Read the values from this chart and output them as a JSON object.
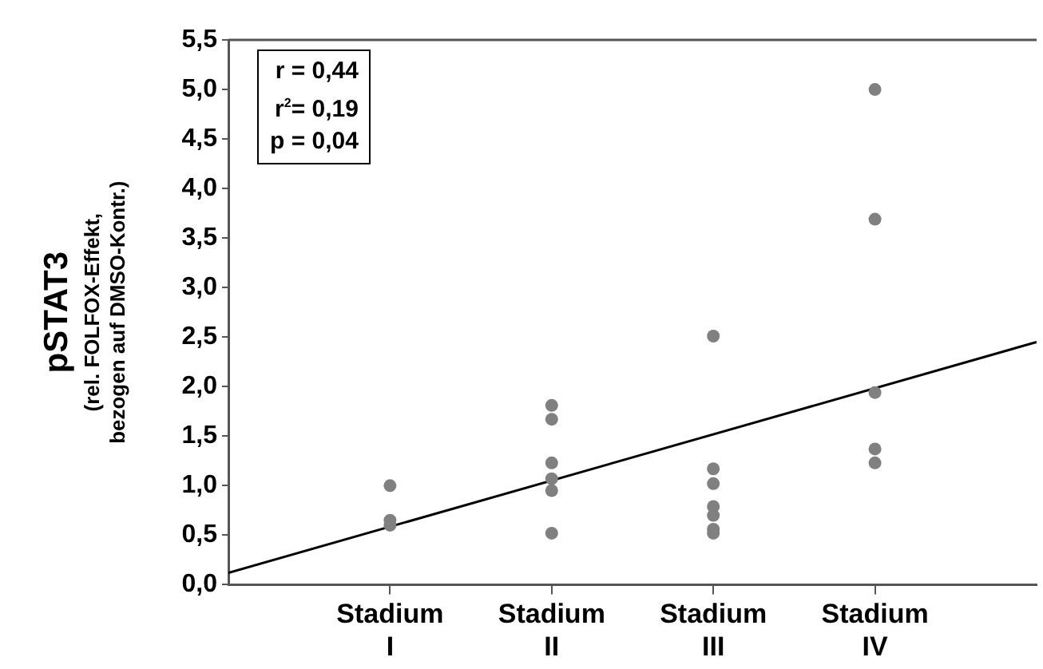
{
  "chart_data": {
    "type": "scatter",
    "ylabel": "pSTAT3\n(rel. FOLFOX-Effekt,\nbezogen auf DMSO-Kontr.)",
    "annotations": [
      "r = 0,44",
      "r$^{2}$= 0,19",
      "p = 0,04"
    ],
    "categories": [
      null,
      "Stadium I",
      "Stadium II",
      "Stadium III",
      "Stadium IV",
      null
    ],
    "ylim": [
      0,
      5.5
    ],
    "yticks": [
      {
        "value": 0,
        "label": "0,0"
      },
      {
        "value": 0.5,
        "label": "0,5"
      },
      {
        "value": 1,
        "label": "1,0"
      },
      {
        "value": 1.5,
        "label": "1,5"
      },
      {
        "value": 2,
        "label": "2,0"
      },
      {
        "value": 2.5,
        "label": "2,5"
      },
      {
        "value": 3,
        "label": "3,0"
      },
      {
        "value": 3.5,
        "label": "3,5"
      },
      {
        "value": 4,
        "label": "4,0"
      },
      {
        "value": 4.5,
        "label": "4,5"
      },
      {
        "value": 5,
        "label": "5,0"
      },
      {
        "value": 5.5,
        "label": "5,5"
      }
    ],
    "grid": false,
    "legend": false,
    "marker": "circle",
    "series": [
      {
        "color": "#808080",
        "x": [
          "Stadium I",
          "Stadium I",
          "Stadium I",
          "Stadium II",
          "Stadium II",
          "Stadium II",
          "Stadium II",
          "Stadium II",
          "Stadium II",
          "Stadium III",
          "Stadium III",
          "Stadium III",
          "Stadium III",
          "Stadium III",
          "Stadium III",
          "Stadium III",
          "Stadium IV",
          "Stadium IV",
          "Stadium IV",
          "Stadium IV",
          "Stadium IV"
        ],
        "values": [
          1.0,
          0.65,
          0.6,
          1.81,
          1.67,
          1.23,
          1.07,
          0.95,
          0.52,
          2.51,
          1.17,
          1.02,
          0.79,
          0.7,
          0.56,
          0.52,
          5.0,
          3.69,
          1.94,
          1.37,
          1.23
        ]
      },
      {
        "type": "line",
        "marker": "none",
        "color": "#000000",
        "values": [
          0.12,
          null,
          null,
          null,
          null,
          2.45
        ]
      }
    ]
  }
}
